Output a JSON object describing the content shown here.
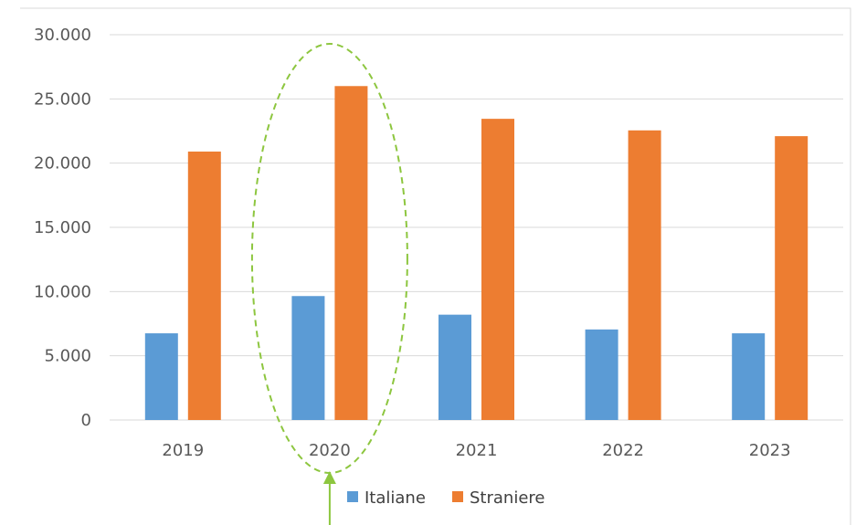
{
  "chart_data": {
    "type": "bar",
    "title": "",
    "xlabel": "",
    "ylabel": "",
    "categories": [
      "2019",
      "2020",
      "2021",
      "2022",
      "2023"
    ],
    "series": [
      {
        "name": "Italiane",
        "color": "#5b9bd5",
        "values": [
          6750,
          9650,
          8200,
          7050,
          6750
        ]
      },
      {
        "name": "Straniere",
        "color": "#ed7d31",
        "values": [
          20900,
          26000,
          23450,
          22550,
          22100
        ]
      }
    ],
    "ylim": [
      0,
      30000
    ],
    "yticks": [
      0,
      5000,
      10000,
      15000,
      20000,
      25000,
      30000
    ],
    "ytick_labels": [
      "0",
      "5.000",
      "10.000",
      "15.000",
      "20.000",
      "25.000",
      "30.000"
    ],
    "grid": true,
    "legend_position": "bottom",
    "highlight": {
      "category": "2020",
      "shape": "dashed-ellipse",
      "color": "#8dc63f",
      "arrow": "up-from-bottom"
    }
  }
}
